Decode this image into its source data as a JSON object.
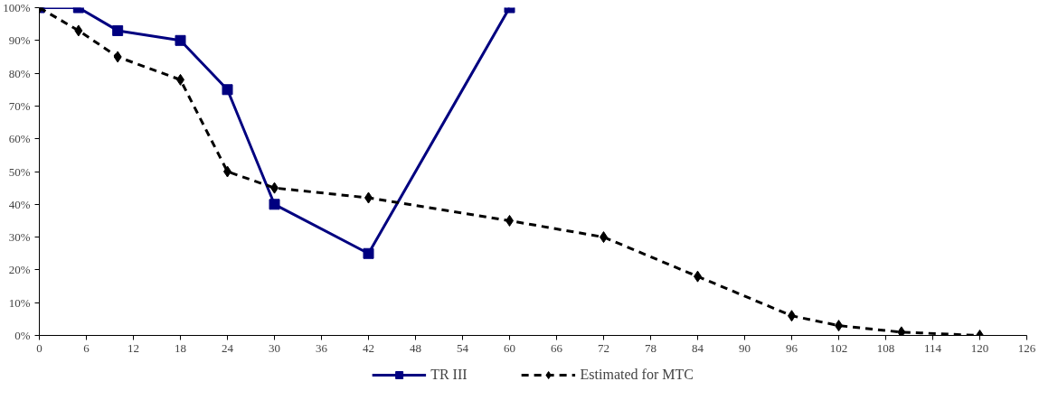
{
  "chart_data": {
    "type": "line",
    "xlim": [
      0,
      126
    ],
    "xticks": [
      0,
      6,
      12,
      18,
      24,
      30,
      36,
      42,
      48,
      54,
      60,
      66,
      72,
      78,
      84,
      90,
      96,
      102,
      108,
      114,
      120,
      126
    ],
    "ylim": [
      0,
      100
    ],
    "yticks": [
      {
        "value": 0,
        "label": "0%"
      },
      {
        "value": 10,
        "label": "10%"
      },
      {
        "value": 20,
        "label": "20%"
      },
      {
        "value": 30,
        "label": "30%"
      },
      {
        "value": 40,
        "label": "40%"
      },
      {
        "value": 50,
        "label": "50%"
      },
      {
        "value": 60,
        "label": "60%"
      },
      {
        "value": 70,
        "label": "70%"
      },
      {
        "value": 80,
        "label": "80%"
      },
      {
        "value": 90,
        "label": "90%"
      },
      {
        "value": 100,
        "label": "100%"
      }
    ],
    "grid": false,
    "legend": "bottom",
    "series": [
      {
        "name": "TR III",
        "color": "#000080",
        "marker": "square",
        "line_style": "solid",
        "x": [
          0,
          5,
          10,
          18,
          24,
          30,
          42,
          60
        ],
        "values": [
          100,
          100,
          93,
          90,
          75,
          40,
          25,
          100
        ]
      },
      {
        "name": "Estimated for MTC",
        "color": "#000000",
        "marker": "diamond",
        "line_style": "dashed",
        "x": [
          0,
          5,
          10,
          18,
          24,
          30,
          42,
          60,
          72,
          84,
          96,
          102,
          110,
          120
        ],
        "values": [
          100,
          93,
          85,
          78,
          50,
          45,
          42,
          35,
          30,
          18,
          6,
          3,
          1,
          0
        ]
      }
    ]
  }
}
